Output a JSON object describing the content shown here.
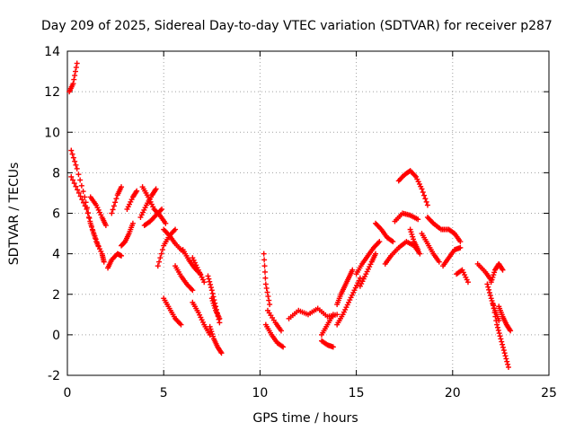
{
  "chart_data": {
    "type": "scatter",
    "title": "Day 209 of 2025, Sidereal Day-to-day VTEC variation (SDTVAR) for receiver p287",
    "xlabel": "GPS time / hours",
    "ylabel": "SDTVAR / TECUs",
    "xlim": [
      0,
      25
    ],
    "ylim": [
      -2,
      14
    ],
    "xticks": [
      0,
      5,
      10,
      15,
      20,
      25
    ],
    "yticks": [
      -2,
      0,
      2,
      4,
      6,
      8,
      10,
      12,
      14
    ],
    "xtick_labels": [
      "0",
      "5",
      "10",
      "15",
      "20",
      "25"
    ],
    "ytick_labels": [
      "-2",
      "0",
      "2",
      "4",
      "6",
      "8",
      "10",
      "12",
      "14"
    ],
    "grid": true,
    "marker": "+",
    "marker_color": "#ff0000",
    "series": [
      {
        "name": "SDTVAR",
        "segments": [
          {
            "x": [
              0.1,
              0.3,
              0.5
            ],
            "y": [
              12.0,
              12.4,
              13.4
            ]
          },
          {
            "x": [
              0.2,
              0.5,
              0.9,
              1.2,
              1.5,
              1.8,
              1.9
            ],
            "y": [
              9.1,
              8.2,
              6.8,
              5.5,
              4.6,
              4.0,
              3.6
            ]
          },
          {
            "x": [
              0.2,
              0.6,
              1.0,
              1.3,
              1.6
            ],
            "y": [
              7.8,
              7.0,
              6.2,
              5.2,
              4.4
            ]
          },
          {
            "x": [
              1.2,
              1.5,
              1.8,
              2.0
            ],
            "y": [
              6.8,
              6.4,
              5.8,
              5.4
            ]
          },
          {
            "x": [
              2.1,
              2.3,
              2.6,
              2.8
            ],
            "y": [
              3.3,
              3.7,
              4.0,
              3.9
            ]
          },
          {
            "x": [
              2.3,
              2.6,
              2.8
            ],
            "y": [
              6.0,
              6.9,
              7.3
            ]
          },
          {
            "x": [
              2.8,
              3.0,
              3.2,
              3.4
            ],
            "y": [
              4.4,
              4.6,
              5.0,
              5.5
            ]
          },
          {
            "x": [
              3.1,
              3.4,
              3.6
            ],
            "y": [
              6.2,
              6.8,
              7.1
            ]
          },
          {
            "x": [
              3.8,
              4.1,
              4.4,
              4.6
            ],
            "y": [
              5.8,
              6.4,
              6.9,
              7.2
            ]
          },
          {
            "x": [
              3.9,
              4.2,
              4.5,
              4.8,
              5.1
            ],
            "y": [
              7.3,
              6.8,
              6.2,
              5.9,
              5.5
            ]
          },
          {
            "x": [
              4.0,
              4.3,
              4.6,
              4.9
            ],
            "y": [
              5.4,
              5.6,
              5.9,
              6.2
            ]
          },
          {
            "x": [
              4.7,
              5.0,
              5.3,
              5.6
            ],
            "y": [
              3.4,
              4.4,
              4.9,
              5.2
            ]
          },
          {
            "x": [
              5.0,
              5.3,
              5.6,
              6.0
            ],
            "y": [
              5.2,
              4.9,
              4.5,
              4.1
            ]
          },
          {
            "x": [
              5.0,
              5.3,
              5.6,
              5.9
            ],
            "y": [
              1.8,
              1.3,
              0.8,
              0.5
            ]
          },
          {
            "x": [
              5.6,
              5.9,
              6.2,
              6.5
            ],
            "y": [
              3.4,
              2.9,
              2.5,
              2.2
            ]
          },
          {
            "x": [
              6.0,
              6.3,
              6.6,
              6.9
            ],
            "y": [
              4.2,
              3.7,
              3.3,
              3.0
            ]
          },
          {
            "x": [
              6.5,
              6.8,
              7.1,
              7.4
            ],
            "y": [
              1.6,
              1.1,
              0.5,
              0.0
            ]
          },
          {
            "x": [
              6.5,
              6.8,
              7.1
            ],
            "y": [
              3.8,
              3.2,
              2.6
            ]
          },
          {
            "x": [
              7.3,
              7.5,
              7.7,
              7.9
            ],
            "y": [
              2.9,
              2.2,
              1.4,
              0.6
            ]
          },
          {
            "x": [
              7.4,
              7.6,
              7.8,
              8.0
            ],
            "y": [
              0.4,
              -0.2,
              -0.6,
              -0.9
            ]
          },
          {
            "x": [
              7.5,
              7.7,
              7.9
            ],
            "y": [
              1.8,
              1.2,
              0.8
            ]
          },
          {
            "x": [
              10.2,
              10.3,
              10.5
            ],
            "y": [
              4.0,
              2.5,
              1.5
            ]
          },
          {
            "x": [
              10.3,
              10.6,
              10.9,
              11.2
            ],
            "y": [
              0.5,
              0.0,
              -0.4,
              -0.6
            ]
          },
          {
            "x": [
              10.4,
              10.8,
              11.1
            ],
            "y": [
              1.2,
              0.6,
              0.2
            ]
          },
          {
            "x": [
              11.5,
              12.0,
              12.5,
              13.0,
              13.5,
              14.0
            ],
            "y": [
              0.8,
              1.2,
              1.0,
              1.3,
              0.9,
              1.0
            ]
          },
          {
            "x": [
              13.2,
              13.5,
              13.8
            ],
            "y": [
              0.0,
              0.5,
              1.0
            ]
          },
          {
            "x": [
              13.2,
              13.5,
              13.8
            ],
            "y": [
              -0.3,
              -0.5,
              -0.6
            ]
          },
          {
            "x": [
              14.0,
              14.2,
              14.4,
              14.6,
              14.8
            ],
            "y": [
              1.5,
              2.0,
              2.4,
              2.8,
              3.2
            ]
          },
          {
            "x": [
              14.0,
              14.3,
              14.6,
              14.9,
              15.2
            ],
            "y": [
              0.5,
              1.0,
              1.6,
              2.2,
              2.8
            ]
          },
          {
            "x": [
              15.0,
              15.3,
              15.6,
              15.9,
              16.2
            ],
            "y": [
              3.0,
              3.5,
              3.9,
              4.3,
              4.6
            ]
          },
          {
            "x": [
              15.2,
              15.5,
              15.8,
              16.0
            ],
            "y": [
              2.4,
              3.0,
              3.6,
              4.0
            ]
          },
          {
            "x": [
              16.0,
              16.3,
              16.6,
              16.9
            ],
            "y": [
              5.5,
              5.2,
              4.8,
              4.6
            ]
          },
          {
            "x": [
              16.5,
              16.8,
              17.2,
              17.6,
              18.0,
              18.3
            ],
            "y": [
              3.5,
              3.9,
              4.3,
              4.6,
              4.4,
              4.0
            ]
          },
          {
            "x": [
              17.0,
              17.4,
              17.8,
              18.2
            ],
            "y": [
              5.6,
              6.0,
              5.9,
              5.7
            ]
          },
          {
            "x": [
              17.2,
              17.5,
              17.8,
              18.1,
              18.4,
              18.7
            ],
            "y": [
              7.6,
              7.9,
              8.1,
              7.8,
              7.2,
              6.4
            ]
          },
          {
            "x": [
              17.8,
              18.0,
              18.2
            ],
            "y": [
              5.2,
              4.6,
              4.2
            ]
          },
          {
            "x": [
              18.4,
              18.7,
              19.0,
              19.3
            ],
            "y": [
              5.0,
              4.5,
              4.0,
              3.6
            ]
          },
          {
            "x": [
              18.7,
              19.0,
              19.4,
              19.8,
              20.1,
              20.4
            ],
            "y": [
              5.8,
              5.5,
              5.2,
              5.2,
              5.0,
              4.6
            ]
          },
          {
            "x": [
              19.5,
              19.8,
              20.1,
              20.4
            ],
            "y": [
              3.4,
              3.8,
              4.2,
              4.3
            ]
          },
          {
            "x": [
              20.2,
              20.5,
              20.8
            ],
            "y": [
              3.0,
              3.2,
              2.6
            ]
          },
          {
            "x": [
              21.3,
              21.7,
              22.0
            ],
            "y": [
              3.5,
              3.1,
              2.7
            ]
          },
          {
            "x": [
              21.8,
              22.0,
              22.2,
              22.4
            ],
            "y": [
              2.5,
              1.8,
              1.2,
              0.7
            ]
          },
          {
            "x": [
              22.0,
              22.2,
              22.4,
              22.6
            ],
            "y": [
              2.6,
              3.2,
              3.5,
              3.2
            ]
          },
          {
            "x": [
              22.1,
              22.3,
              22.5,
              22.7,
              22.9
            ],
            "y": [
              1.5,
              0.5,
              -0.2,
              -0.9,
              -1.6
            ]
          },
          {
            "x": [
              22.4,
              22.6,
              22.8,
              23.0
            ],
            "y": [
              1.4,
              0.9,
              0.5,
              0.2
            ]
          }
        ]
      }
    ]
  }
}
